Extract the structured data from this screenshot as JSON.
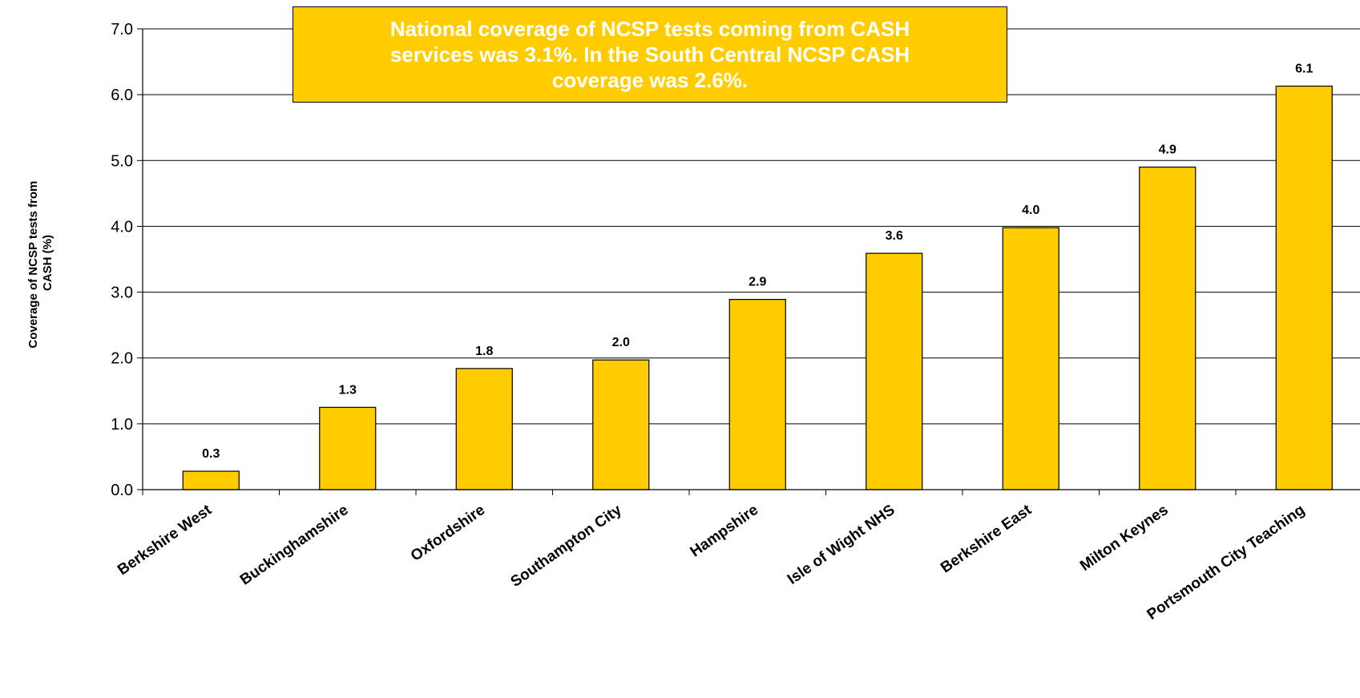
{
  "callout": {
    "lines": [
      "National coverage of  NCSP tests coming from CASH",
      "services was 3.1%. In the South Central NCSP CASH",
      "coverage was  2.6%."
    ]
  },
  "colors": {
    "bar_fill": "#FFCC00",
    "callout_fill": "#FFCC00",
    "callout_text": "#FFFFFF",
    "axis": "#000000"
  },
  "chart_data": {
    "type": "bar",
    "ylabel": [
      "Coverage of NCSP tests from",
      "CASH (%)"
    ],
    "xlabel": "",
    "ylim": [
      0,
      7
    ],
    "ytick_step": 1,
    "ytick_labels": [
      "0.0",
      "1.0",
      "2.0",
      "3.0",
      "4.0",
      "5.0",
      "6.0",
      "7.0"
    ],
    "grid": true,
    "categories": [
      "Berkshire West",
      "Buckinghamshire",
      "Oxfordshire",
      "Southampton City",
      "Hampshire",
      "Isle of Wight NHS",
      "Berkshire East",
      "Milton Keynes",
      "Portsmouth City Teaching"
    ],
    "values": [
      0.28,
      1.25,
      1.84,
      1.97,
      2.89,
      3.59,
      3.98,
      4.9,
      6.13
    ],
    "data_labels": [
      "0.3",
      "1.3",
      "1.8",
      "2.0",
      "2.9",
      "3.6",
      "4.0",
      "4.9",
      "6.1"
    ]
  }
}
